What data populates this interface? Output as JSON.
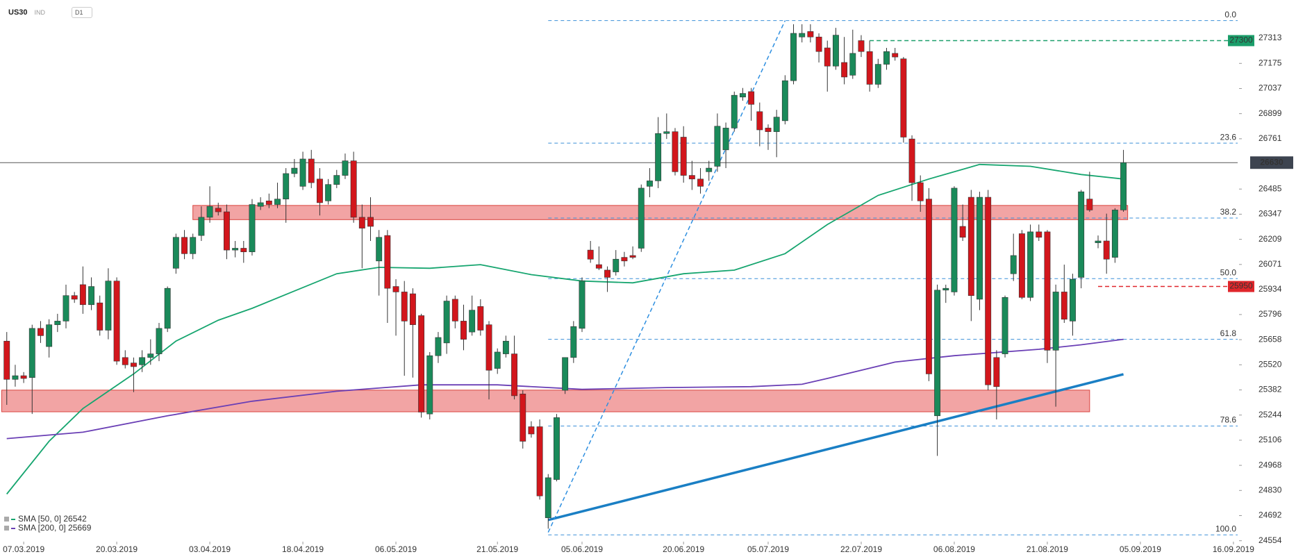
{
  "header": {
    "symbol": "US30",
    "market": "IND",
    "interval": "D1"
  },
  "chart_data": {
    "type": "candlestick",
    "xlim": [
      -0.8,
      145.5
    ],
    "ylim": [
      24549,
      27523
    ],
    "xticks": [
      {
        "value": 2,
        "label": "07.03.2019"
      },
      {
        "value": 13,
        "label": "20.03.2019"
      },
      {
        "value": 24,
        "label": "03.04.2019"
      },
      {
        "value": 35,
        "label": "18.04.2019"
      },
      {
        "value": 46,
        "label": "06.05.2019"
      },
      {
        "value": 58,
        "label": "21.05.2019"
      },
      {
        "value": 68,
        "label": "05.06.2019"
      },
      {
        "value": 80,
        "label": "20.06.2019"
      },
      {
        "value": 90,
        "label": "05.07.2019"
      },
      {
        "value": 101,
        "label": "22.07.2019"
      },
      {
        "value": 112,
        "label": "06.08.2019"
      },
      {
        "value": 123,
        "label": "21.08.2019"
      },
      {
        "value": 134,
        "label": "05.09.2019"
      },
      {
        "value": 145,
        "label": "16.09.2019"
      }
    ],
    "yticks": [
      27313,
      27175,
      27037,
      26899,
      26761,
      26485,
      26347,
      26209,
      26071,
      25934,
      25796,
      25658,
      25520,
      25382,
      25244,
      25106,
      24968,
      24830,
      24692,
      24554
    ],
    "up_color": "#1a8a5a",
    "down_color": "#d2161c",
    "ohlc": [
      [
        25650,
        25700,
        25300,
        25440
      ],
      [
        25440,
        25520,
        25400,
        25460
      ],
      [
        25460,
        25480,
        25420,
        25445
      ],
      [
        25450,
        25740,
        25250,
        25720
      ],
      [
        25720,
        25760,
        25640,
        25680
      ],
      [
        25620,
        25770,
        25560,
        25740
      ],
      [
        25740,
        25800,
        25700,
        25760
      ],
      [
        25760,
        25960,
        25720,
        25900
      ],
      [
        25900,
        25920,
        25860,
        25880
      ],
      [
        25960,
        26060,
        25800,
        25850
      ],
      [
        25850,
        26000,
        25820,
        25950
      ],
      [
        25860,
        25900,
        25680,
        25710
      ],
      [
        25710,
        26050,
        25660,
        25980
      ],
      [
        25980,
        26000,
        25520,
        25540
      ],
      [
        25560,
        25600,
        25500,
        25520
      ],
      [
        25530,
        25560,
        25370,
        25510
      ],
      [
        25520,
        25600,
        25480,
        25560
      ],
      [
        25560,
        25660,
        25520,
        25580
      ],
      [
        25580,
        25750,
        25540,
        25720
      ],
      [
        25720,
        25950,
        25700,
        25940
      ],
      [
        26050,
        26240,
        26020,
        26220
      ],
      [
        26220,
        26260,
        26100,
        26130
      ],
      [
        26130,
        26240,
        26100,
        26220
      ],
      [
        26230,
        26390,
        26200,
        26330
      ],
      [
        26330,
        26500,
        26300,
        26390
      ],
      [
        26380,
        26410,
        26340,
        26360
      ],
      [
        26360,
        26400,
        26100,
        26150
      ],
      [
        26150,
        26200,
        26110,
        26160
      ],
      [
        26160,
        26200,
        26080,
        26140
      ],
      [
        26140,
        26430,
        26120,
        26400
      ],
      [
        26390,
        26440,
        26370,
        26410
      ],
      [
        26420,
        26460,
        26380,
        26400
      ],
      [
        26400,
        26520,
        26380,
        26430
      ],
      [
        26430,
        26600,
        26300,
        26570
      ],
      [
        26570,
        26650,
        26550,
        26600
      ],
      [
        26500,
        26690,
        26480,
        26650
      ],
      [
        26650,
        26700,
        26490,
        26520
      ],
      [
        26540,
        26600,
        26340,
        26410
      ],
      [
        26420,
        26540,
        26400,
        26510
      ],
      [
        26510,
        26590,
        26490,
        26560
      ],
      [
        26560,
        26680,
        26540,
        26640
      ],
      [
        26640,
        26690,
        26300,
        26330
      ],
      [
        26330,
        26400,
        26050,
        26270
      ],
      [
        26330,
        26440,
        26200,
        26280
      ],
      [
        26090,
        26260,
        25900,
        26220
      ],
      [
        26230,
        26260,
        25750,
        25940
      ],
      [
        25950,
        25990,
        25680,
        25920
      ],
      [
        25920,
        25980,
        25460,
        25760
      ],
      [
        25910,
        25940,
        25450,
        25740
      ],
      [
        25790,
        25800,
        25230,
        25260
      ],
      [
        25250,
        25590,
        25220,
        25570
      ],
      [
        25570,
        25700,
        25530,
        25670
      ],
      [
        25640,
        25900,
        25580,
        25870
      ],
      [
        25880,
        25900,
        25720,
        25760
      ],
      [
        25760,
        25850,
        25600,
        25660
      ],
      [
        25700,
        25900,
        25680,
        25820
      ],
      [
        25840,
        25880,
        25680,
        25710
      ],
      [
        25740,
        25760,
        25330,
        25490
      ],
      [
        25500,
        25610,
        25470,
        25590
      ],
      [
        25580,
        25680,
        25560,
        25650
      ],
      [
        25580,
        25680,
        25330,
        25350
      ],
      [
        25360,
        25380,
        25060,
        25100
      ],
      [
        25180,
        25210,
        25120,
        25140
      ],
      [
        25180,
        25220,
        24780,
        24800
      ],
      [
        24680,
        24920,
        24620,
        24900
      ],
      [
        24890,
        25250,
        24880,
        25230
      ],
      [
        25380,
        25560,
        25360,
        25560
      ],
      [
        25560,
        25760,
        25530,
        25730
      ],
      [
        25720,
        26000,
        25700,
        25980
      ],
      [
        26150,
        26200,
        26080,
        26100
      ],
      [
        26070,
        26170,
        26040,
        26050
      ],
      [
        26040,
        26060,
        25920,
        26000
      ],
      [
        26030,
        26150,
        26010,
        26100
      ],
      [
        26110,
        26140,
        26060,
        26090
      ],
      [
        26120,
        26170,
        26100,
        26110
      ],
      [
        26160,
        26510,
        26140,
        26490
      ],
      [
        26500,
        26600,
        26440,
        26530
      ],
      [
        26530,
        26880,
        26490,
        26790
      ],
      [
        26790,
        26900,
        26760,
        26800
      ],
      [
        26800,
        26820,
        26560,
        26580
      ],
      [
        26770,
        26830,
        26520,
        26560
      ],
      [
        26560,
        26640,
        26480,
        26540
      ],
      [
        26540,
        26600,
        26460,
        26500
      ],
      [
        26580,
        26640,
        26530,
        26600
      ],
      [
        26610,
        26900,
        26580,
        26830
      ],
      [
        26700,
        26850,
        26600,
        26820
      ],
      [
        26820,
        27020,
        26800,
        27000
      ],
      [
        26990,
        27040,
        26970,
        27010
      ],
      [
        27020,
        27040,
        26860,
        26950
      ],
      [
        26910,
        26960,
        26720,
        26810
      ],
      [
        26820,
        26840,
        26700,
        26800
      ],
      [
        26800,
        26920,
        26660,
        26880
      ],
      [
        26860,
        27110,
        26840,
        27080
      ],
      [
        27080,
        27390,
        27060,
        27340
      ],
      [
        27320,
        27390,
        27290,
        27340
      ],
      [
        27350,
        27390,
        27290,
        27320
      ],
      [
        27320,
        27340,
        27180,
        27240
      ],
      [
        27260,
        27300,
        27020,
        27160
      ],
      [
        27160,
        27370,
        27140,
        27330
      ],
      [
        27180,
        27320,
        27060,
        27100
      ],
      [
        27110,
        27360,
        27090,
        27230
      ],
      [
        27300,
        27330,
        27210,
        27240
      ],
      [
        27240,
        27300,
        27020,
        27060
      ],
      [
        27060,
        27200,
        27040,
        27170
      ],
      [
        27170,
        27260,
        27140,
        27240
      ],
      [
        27230,
        27260,
        27190,
        27210
      ],
      [
        27200,
        27210,
        26740,
        26770
      ],
      [
        26760,
        26780,
        26420,
        26520
      ],
      [
        26520,
        26560,
        26360,
        26420
      ],
      [
        26430,
        26490,
        25430,
        25470
      ],
      [
        25240,
        25960,
        25020,
        25930
      ],
      [
        25930,
        25960,
        25860,
        25940
      ],
      [
        25920,
        26500,
        25900,
        26490
      ],
      [
        26280,
        26400,
        26200,
        26220
      ],
      [
        26440,
        26480,
        25760,
        25900
      ],
      [
        25880,
        26470,
        25820,
        26440
      ],
      [
        26440,
        26480,
        25380,
        25410
      ],
      [
        25560,
        25600,
        25220,
        25400
      ],
      [
        25580,
        25900,
        25560,
        25890
      ],
      [
        26020,
        26240,
        25980,
        26120
      ],
      [
        26240,
        26260,
        25880,
        25890
      ],
      [
        25890,
        26290,
        25870,
        26250
      ],
      [
        26250,
        26290,
        26200,
        26220
      ],
      [
        26250,
        26260,
        25530,
        25600
      ],
      [
        25600,
        25960,
        25290,
        25920
      ],
      [
        25920,
        26070,
        25750,
        25770
      ],
      [
        25760,
        26020,
        25680,
        25990
      ],
      [
        26000,
        26480,
        25940,
        26470
      ],
      [
        26430,
        26580,
        26360,
        26370
      ],
      [
        26190,
        26230,
        26160,
        26200
      ],
      [
        26200,
        26350,
        26020,
        26100
      ],
      [
        26110,
        26380,
        26080,
        26370
      ],
      [
        26370,
        26700,
        26360,
        26630
      ]
    ],
    "series": [
      {
        "name": "SMA [50, 0] 26542",
        "color": "#16a56f",
        "x": [
          0,
          5,
          9,
          15,
          20,
          25,
          29,
          34,
          39,
          44,
          50,
          56,
          62,
          68,
          74,
          80,
          86,
          92,
          97,
          103,
          109,
          115,
          121,
          127,
          132
        ],
        "values": [
          24810,
          25100,
          25280,
          25470,
          25650,
          25765,
          25830,
          25925,
          26020,
          26055,
          26050,
          26070,
          26015,
          25980,
          25970,
          26020,
          26040,
          26130,
          26290,
          26450,
          26540,
          26620,
          26610,
          26565,
          26540
        ]
      },
      {
        "name": "SMA [200, 0] 25669",
        "color": "#6a3fb5",
        "x": [
          0,
          9,
          19,
          29,
          39,
          49,
          58,
          68,
          78,
          88,
          94,
          97,
          105,
          112,
          122,
          127,
          132
        ],
        "values": [
          25115,
          25150,
          25240,
          25320,
          25375,
          25410,
          25410,
          25385,
          25395,
          25400,
          25413,
          25445,
          25535,
          25570,
          25605,
          25630,
          25660
        ]
      }
    ],
    "fib_levels": [
      {
        "value": 27410,
        "label": "0.0"
      },
      {
        "value": 26737,
        "label": "23.6"
      },
      {
        "value": 26326,
        "label": "38.2"
      },
      {
        "value": 25993,
        "label": "50.0"
      },
      {
        "value": 25660,
        "label": "61.8"
      },
      {
        "value": 25184,
        "label": "78.6"
      },
      {
        "value": 24586,
        "label": "100.0"
      }
    ],
    "fib_start": 64,
    "trendlines": [
      {
        "x": [
          64,
          132
        ],
        "values": [
          24668,
          25468
        ],
        "color": "#1a7fc4",
        "style": "solid"
      },
      {
        "x": [
          64,
          92
        ],
        "values": [
          24600,
          27410
        ],
        "color": "#2e8fe0",
        "style": "dashed"
      }
    ],
    "zones": [
      {
        "x": [
          22,
          132.5
        ],
        "y": [
          26317,
          26395
        ]
      },
      {
        "x": [
          -0.6,
          128
        ],
        "y": [
          25262,
          25381
        ]
      }
    ],
    "price_tags": [
      {
        "value": 27300,
        "from": 102,
        "color": "#1a9e6a"
      },
      {
        "value": 25950,
        "from": 129,
        "color": "#e0262b"
      }
    ],
    "last_price": 26630
  }
}
